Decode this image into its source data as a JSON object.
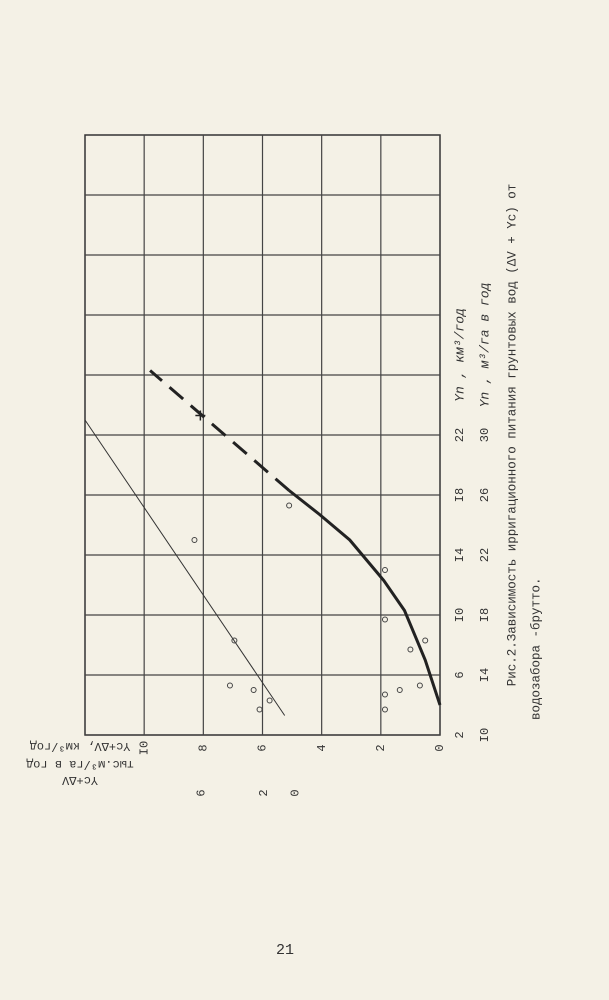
{
  "chart_data": {
    "type": "line",
    "caption": [
      "Рис.2.Зависимость ирригационного питания грунтовых вод (ΔV + Yc) от",
      "водозабора -брутто."
    ],
    "x_label": "Yn , км³/год",
    "x2_label": "Yn , м³/га в год",
    "y_label": "Yc+ΔV, км³/год",
    "y2_label": [
      "тыс.м³/га в год",
      "Yc+ΔV"
    ],
    "xlim": [
      2,
      42
    ],
    "xticks": [
      2,
      6,
      {
        "value": 10,
        "label": "I0"
      },
      {
        "value": 14,
        "label": "I4"
      },
      {
        "value": 18,
        "label": "I8"
      },
      22
    ],
    "x2lim": [
      10,
      50
    ],
    "x2ticks": [
      {
        "value": 10,
        "label": "I0"
      },
      {
        "value": 14,
        "label": "I4"
      },
      {
        "value": 18,
        "label": "I8"
      },
      22,
      26,
      30
    ],
    "ylim": [
      0,
      12
    ],
    "yticks": [
      0,
      2,
      4,
      6,
      8,
      {
        "value": 10,
        "label": "I0"
      }
    ],
    "y2lim": [
      -9.2,
      13.4
    ],
    "y2ticks": [
      0,
      2,
      6
    ],
    "grid": true,
    "series": [
      {
        "color": "#222",
        "width": 3,
        "dash": false,
        "x": [
          4,
          7,
          10.3,
          12.3,
          15,
          16.7,
          18.3
        ],
        "values": [
          0,
          0.5,
          1.2,
          1.9,
          3.05,
          4.07,
          5.1
        ]
      },
      {
        "color": "#222",
        "width": 3,
        "dash": true,
        "x": [
          18.3,
          26.3
        ],
        "values": [
          5.1,
          9.8
        ]
      },
      {
        "color": "#333",
        "width": 1,
        "dash": false,
        "x": [
          3.3,
          23
        ],
        "values": [
          5.25,
          12
        ]
      }
    ],
    "points": {
      "color": "#444",
      "x": [
        15,
        17.3,
        13,
        9.7,
        8.3,
        7.7,
        4.7,
        5,
        5.3,
        3.7,
        4.3,
        5,
        5.3,
        8.3,
        3.7
      ],
      "values": [
        8.3,
        5.1,
        1.86,
        1.86,
        0.5,
        1.0,
        1.86,
        1.36,
        0.68,
        1.86,
        5.76,
        6.3,
        7.1,
        6.95,
        6.1
      ]
    },
    "marker": {
      "x": 23.3,
      "value": 8.1
    }
  },
  "page_number": "21"
}
